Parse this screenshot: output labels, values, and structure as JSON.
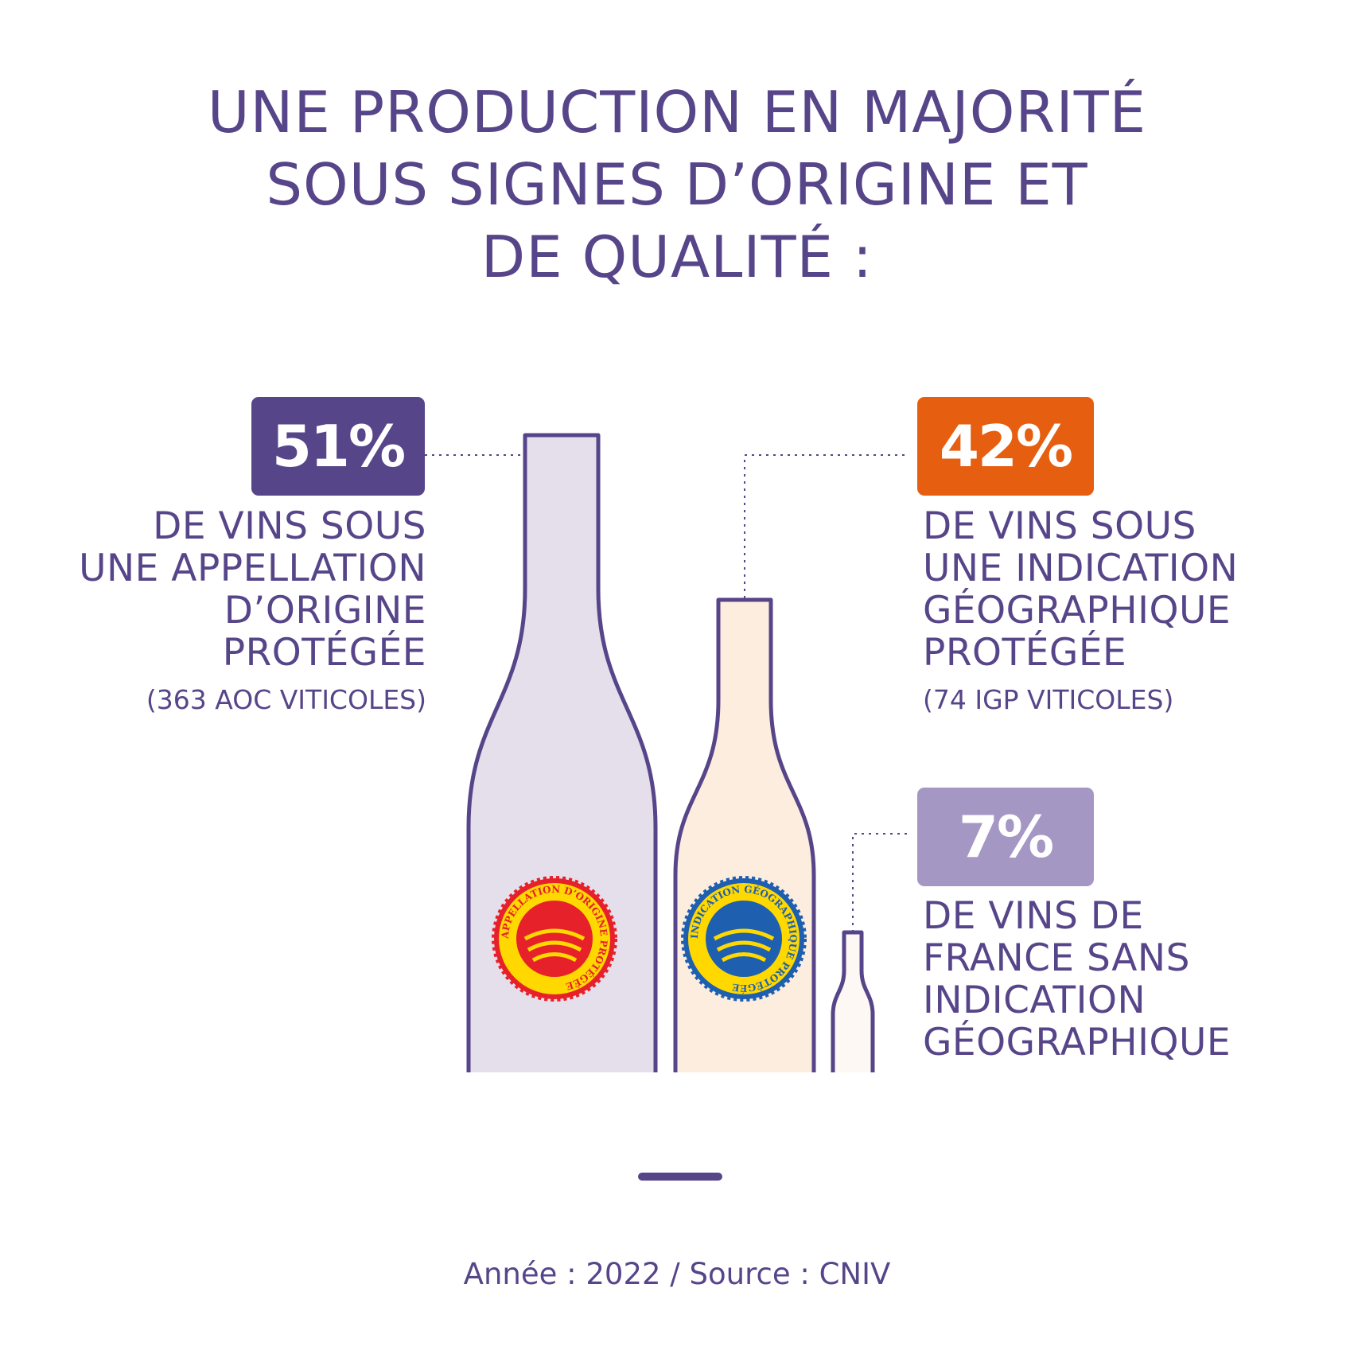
{
  "title_lines": [
    "UNE PRODUCTION EN MAJORITÉ",
    "SOUS SIGNES D’ORIGINE ET",
    "DE QUALITÉ :"
  ],
  "chart_data": {
    "type": "bar",
    "categories": [
      "AOP",
      "IGP",
      "VSIG"
    ],
    "values": [
      51,
      42,
      7
    ],
    "unit": "%",
    "labels": [
      "51%",
      "42%",
      "7%"
    ],
    "colors": [
      "#574589",
      "#e65e0f",
      "#a597c4"
    ],
    "fills": [
      "#e5dfec",
      "#fdeddf",
      "#fdf8f4"
    ],
    "descriptions": [
      [
        "DE VINS SOUS",
        "UNE APPELLATION",
        "D’ORIGINE",
        "PROTÉGÉE"
      ],
      [
        "DE VINS SOUS",
        "UNE INDICATION",
        "GÉOGRAPHIQUE",
        "PROTÉGÉE"
      ],
      [
        "DE VINS DE",
        "FRANCE SANS",
        "INDICATION",
        "GÉOGRAPHIQUE"
      ]
    ],
    "notes": [
      "(363 AOC VITICOLES)",
      "(74 IGP VITICOLES)"
    ]
  },
  "seals": {
    "aop_text": "APPELLATION D’ORIGINE PROTÉGÉE",
    "igp_text": "INDICATION GÉOGRAPHIQUE PROTÉGÉE"
  },
  "footer": "Année : 2022 / Source : CNIV"
}
